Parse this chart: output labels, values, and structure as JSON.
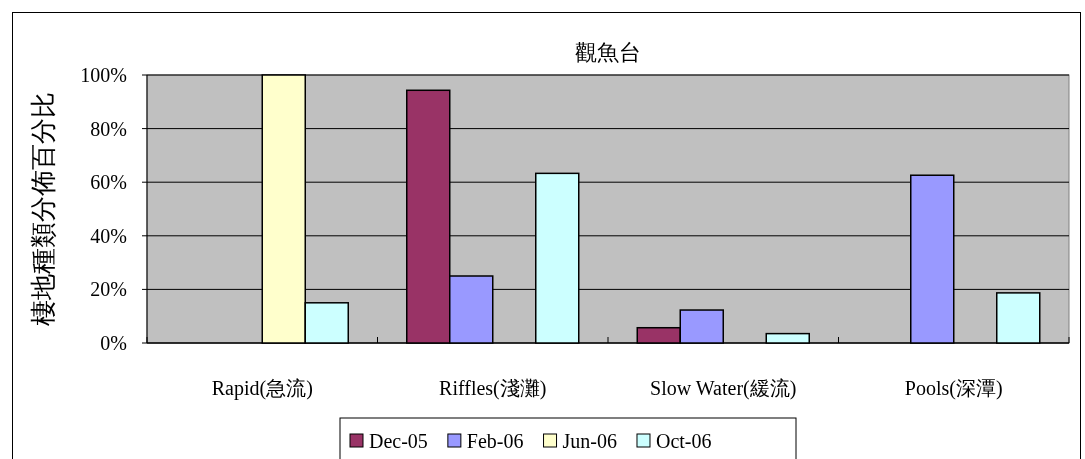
{
  "chart_data": {
    "type": "bar",
    "title": "觀魚台",
    "ylabel": "棲地種類分佈百分比",
    "categories": [
      "Rapid(急流)",
      "Riffles(淺灘)",
      "Slow Water(緩流)",
      "Pools(深潭)"
    ],
    "series": [
      {
        "name": "Dec-05",
        "color": "#993366",
        "values": [
          0,
          94.3,
          5.7,
          0
        ]
      },
      {
        "name": "Feb-06",
        "color": "#9999ff",
        "values": [
          0,
          25,
          12.3,
          62.6
        ]
      },
      {
        "name": "Jun-06",
        "color": "#ffffcc",
        "values": [
          100,
          0,
          0,
          0
        ]
      },
      {
        "name": "Oct-06",
        "color": "#ccffff",
        "values": [
          15,
          63.3,
          3.5,
          18.7
        ]
      }
    ],
    "ylim": [
      0,
      100
    ],
    "yticks": [
      {
        "value": 0,
        "label": "0%"
      },
      {
        "value": 20,
        "label": "20%"
      },
      {
        "value": 40,
        "label": "40%"
      },
      {
        "value": 60,
        "label": "60%"
      },
      {
        "value": 80,
        "label": "80%"
      },
      {
        "value": 100,
        "label": "100%"
      }
    ],
    "grid": "y",
    "legend": "bottom"
  }
}
